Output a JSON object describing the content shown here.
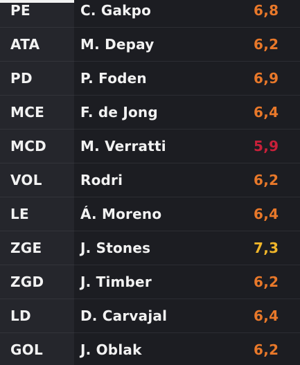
{
  "colors": {
    "rating_orange": "#e8782a",
    "rating_red": "#c8203a",
    "rating_yellow": "#f0b62a",
    "text_white": "#f2f2f2"
  },
  "rows": [
    {
      "position": "PE",
      "player": "C. Gakpo",
      "rating": "6,8",
      "rating_color": "#e8782a"
    },
    {
      "position": "ATA",
      "player": "M. Depay",
      "rating": "6,2",
      "rating_color": "#e8782a"
    },
    {
      "position": "PD",
      "player": "P. Foden",
      "rating": "6,9",
      "rating_color": "#e8782a"
    },
    {
      "position": "MCE",
      "player": "F. de Jong",
      "rating": "6,4",
      "rating_color": "#e8782a"
    },
    {
      "position": "MCD",
      "player": "M. Verratti",
      "rating": "5,9",
      "rating_color": "#c8203a"
    },
    {
      "position": "VOL",
      "player": "Rodri",
      "rating": "6,2",
      "rating_color": "#e8782a"
    },
    {
      "position": "LE",
      "player": "Á. Moreno",
      "rating": "6,4",
      "rating_color": "#e8782a"
    },
    {
      "position": "ZGE",
      "player": "J. Stones",
      "rating": "7,3",
      "rating_color": "#f0b62a"
    },
    {
      "position": "ZGD",
      "player": "J. Timber",
      "rating": "6,2",
      "rating_color": "#e8782a"
    },
    {
      "position": "LD",
      "player": "D. Carvajal",
      "rating": "6,4",
      "rating_color": "#e8782a"
    },
    {
      "position": "GOL",
      "player": "J. Oblak",
      "rating": "6,2",
      "rating_color": "#e8782a"
    }
  ]
}
